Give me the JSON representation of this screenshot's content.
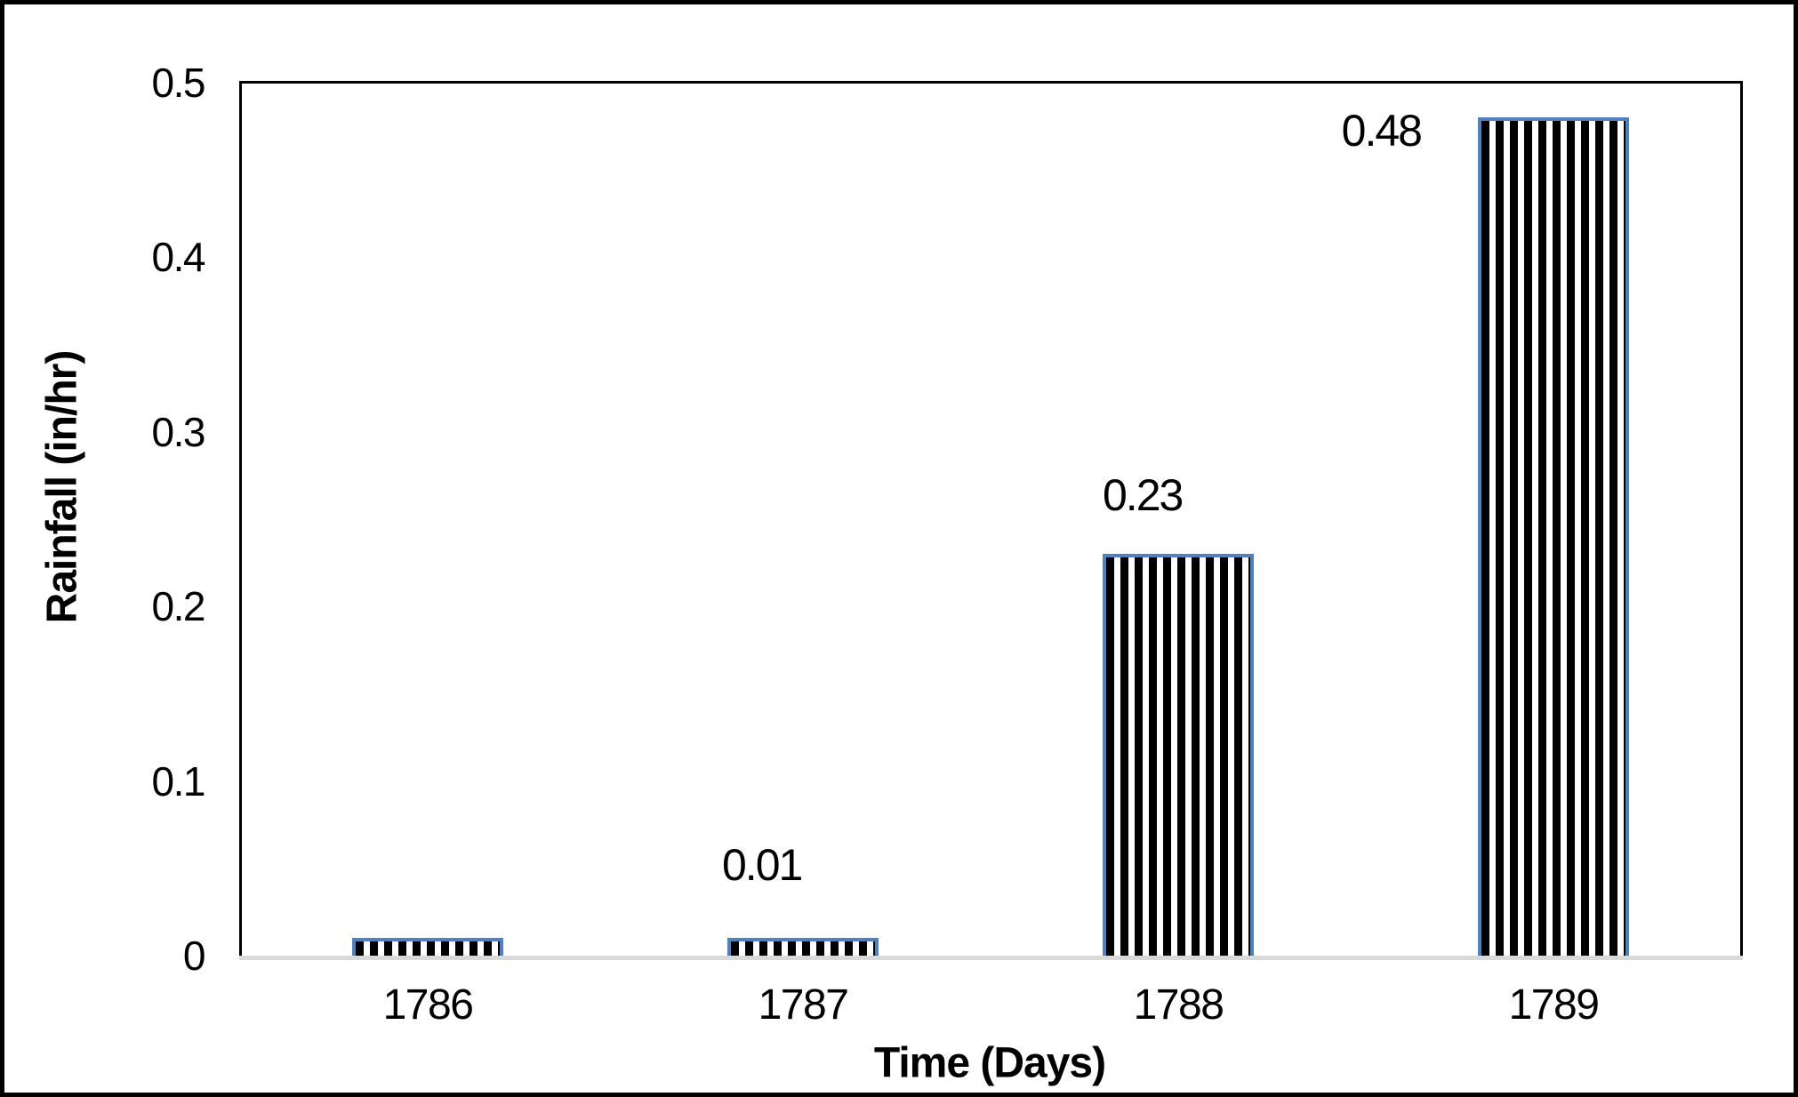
{
  "chart_data": {
    "type": "bar",
    "title": "",
    "xlabel": "Time (Days)",
    "ylabel": "Rainfall (in/hr)",
    "categories": [
      "1786",
      "1787",
      "1788",
      "1789"
    ],
    "values": [
      0.01,
      0.01,
      0.23,
      0.48
    ],
    "data_labels": [
      "",
      "0.01",
      "0.23",
      "0.48"
    ],
    "ylim": [
      0,
      0.5
    ],
    "ytick_values": [
      0,
      0.1,
      0.2,
      0.3,
      0.4,
      0.5
    ],
    "ytick_labels": [
      "0",
      "0.1",
      "0.2",
      "0.3",
      "0.4",
      "0.5"
    ],
    "grid": false,
    "legend": "none",
    "bar_pattern": "vertical-stripes",
    "colors": {
      "bar_border": "#4e81bd",
      "bar_stripe": "#000000",
      "bar_fill": "#ffffff",
      "axis_line": "#000000",
      "baseline": "#d9d9d9",
      "text": "#000000",
      "figure_border": "#000000",
      "background": "#ffffff"
    }
  }
}
